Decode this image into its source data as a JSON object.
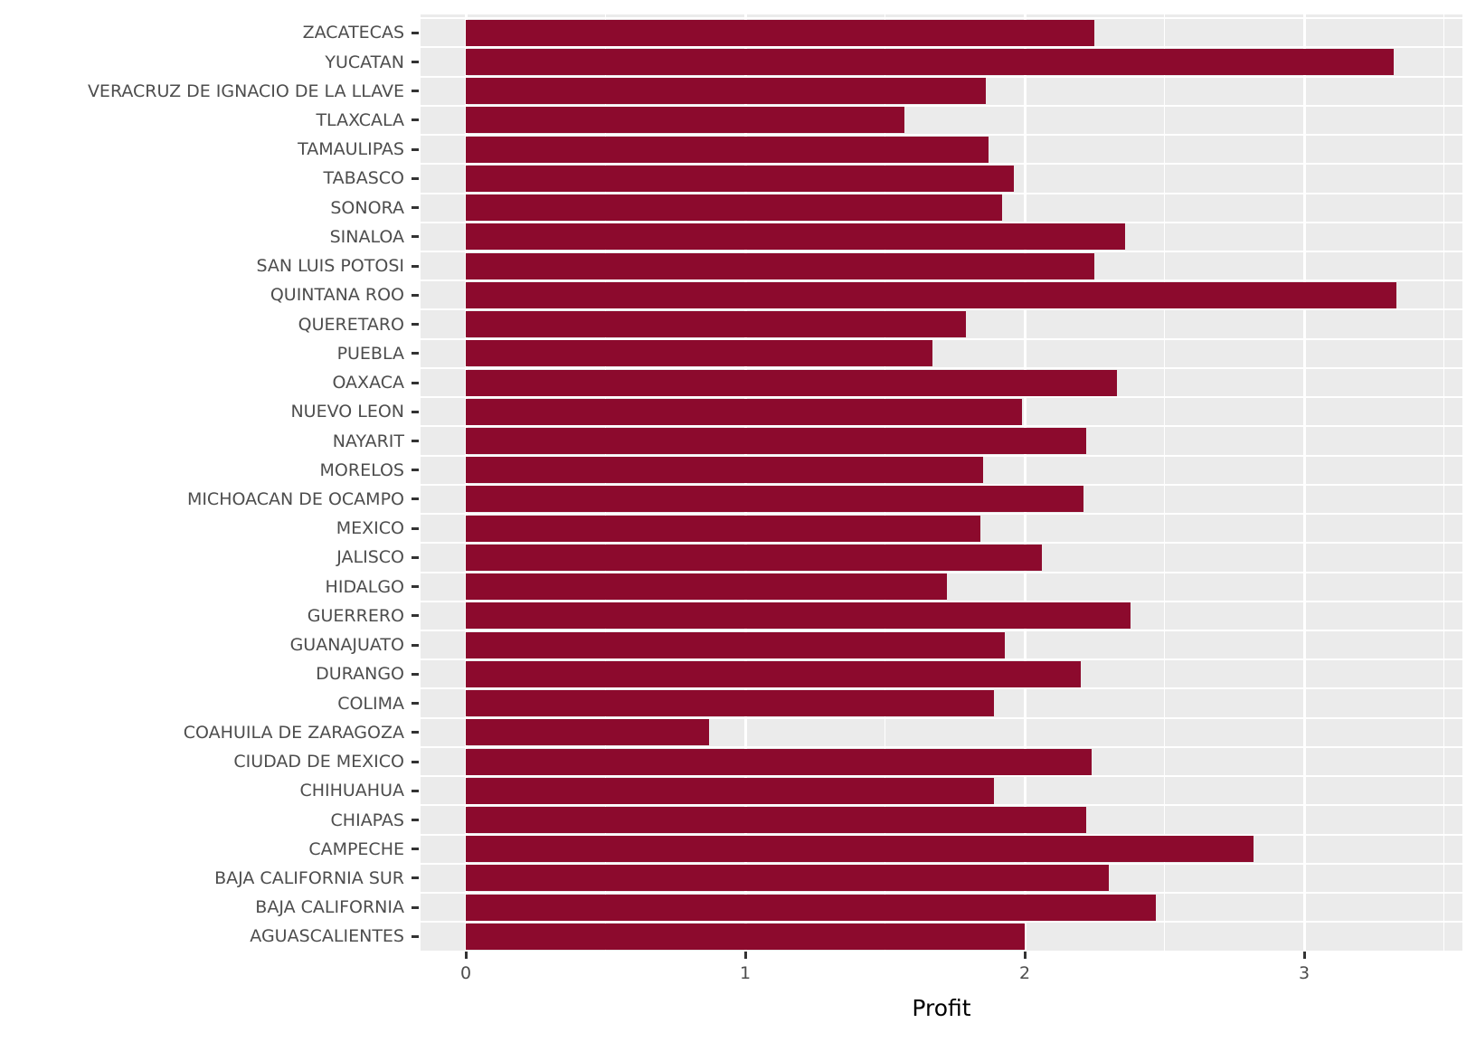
{
  "chart_data": {
    "type": "bar",
    "orientation": "horizontal",
    "title": "",
    "xlabel": "Profit",
    "ylabel": "",
    "categories": [
      "ZACATECAS",
      "YUCATAN",
      "VERACRUZ DE IGNACIO DE LA LLAVE",
      "TLAXCALA",
      "TAMAULIPAS",
      "TABASCO",
      "SONORA",
      "SINALOA",
      "SAN LUIS POTOSI",
      "QUINTANA ROO",
      "QUERETARO",
      "PUEBLA",
      "OAXACA",
      "NUEVO LEON",
      "NAYARIT",
      "MORELOS",
      "MICHOACAN DE OCAMPO",
      "MEXICO",
      "JALISCO",
      "HIDALGO",
      "GUERRERO",
      "GUANAJUATO",
      "DURANGO",
      "COLIMA",
      "COAHUILA DE ZARAGOZA",
      "CIUDAD DE MEXICO",
      "CHIHUAHUA",
      "CHIAPAS",
      "CAMPECHE",
      "BAJA CALIFORNIA SUR",
      "BAJA CALIFORNIA",
      "AGUASCALIENTES"
    ],
    "values": [
      2.25,
      3.32,
      1.86,
      1.57,
      1.87,
      1.96,
      1.92,
      2.36,
      2.25,
      3.33,
      1.79,
      1.67,
      2.33,
      1.99,
      2.22,
      1.85,
      2.21,
      1.84,
      2.06,
      1.72,
      2.38,
      1.93,
      2.2,
      1.89,
      0.87,
      2.24,
      1.89,
      2.22,
      2.82,
      2.3,
      2.47,
      2.0
    ],
    "x_ticks": [
      "0",
      "1",
      "2",
      "3"
    ],
    "x_tick_values": [
      0,
      1,
      2,
      3
    ],
    "x_minor_ticks": [
      0.5,
      1.5,
      2.5,
      3.5
    ],
    "xlim": [
      -0.162,
      3.566
    ],
    "grid": "on",
    "legend": "none"
  },
  "style": {
    "bar_color": "#8C0A2D",
    "panel_bg": "#EBEBEB",
    "grid_color": "#FFFFFF",
    "axis_text_color": "#4D4D4D",
    "axis_title_color": "#000000",
    "tick_mark_color": "#333333",
    "figure_bg": "#FFFFFF"
  }
}
